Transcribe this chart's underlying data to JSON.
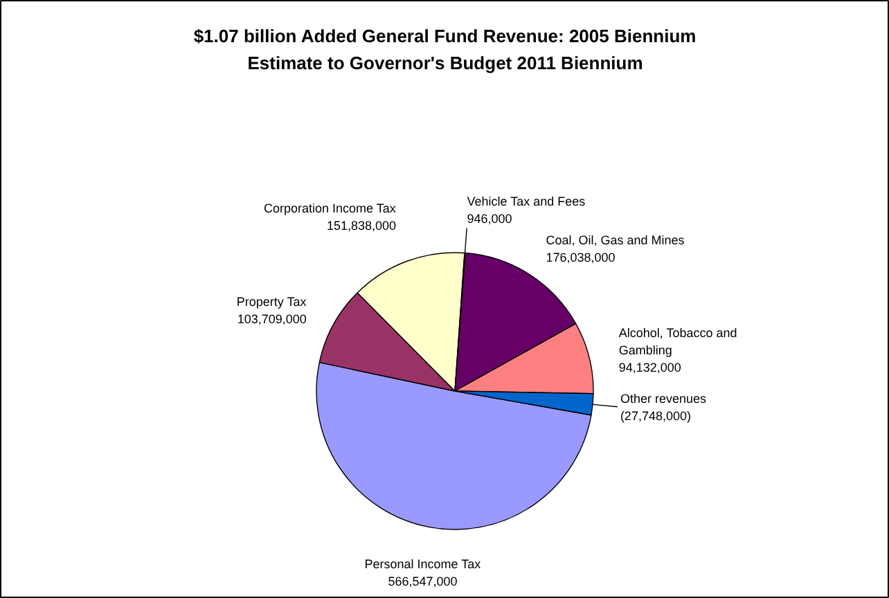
{
  "chart_data": {
    "type": "pie",
    "title": "$1.07 billion Added General Fund Revenue: 2005 Biennium Estimate to Governor's Budget 2011 Biennium",
    "categories": [
      "Personal Income Tax",
      "Property Tax",
      "Corporation Income Tax",
      "Vehicle Tax and Fees",
      "Coal, Oil, Gas and Mines",
      "Alcohol, Tobacco and Gambling",
      "Other revenues"
    ],
    "values": [
      566547000,
      103709000,
      151838000,
      946000,
      176038000,
      94132000,
      27748000
    ],
    "value_labels": [
      "566,547,000",
      "103,709,000",
      "151,838,000",
      "946,000",
      "176,038,000",
      "94,132,000",
      "(27,748,000)"
    ],
    "colors": [
      "#9999ff",
      "#993366",
      "#ffffcc",
      "#ccffff",
      "#660066",
      "#ff8080",
      "#0066cc"
    ]
  }
}
